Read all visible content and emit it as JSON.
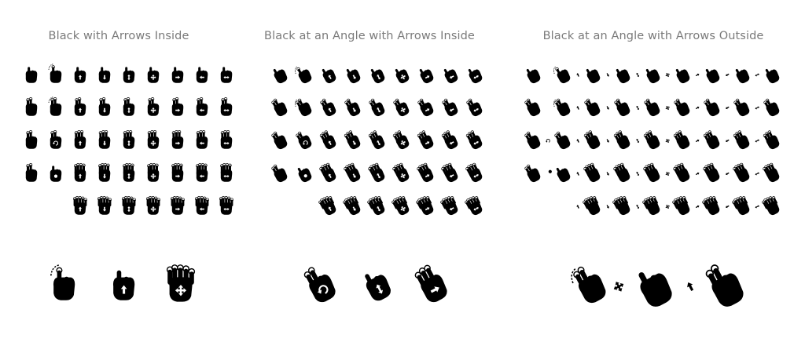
{
  "colors": {
    "background": "#ffffff",
    "title_text": "#7a7a7a",
    "icon_fill": "#000000",
    "arrow_fill": "#ffffff"
  },
  "panels": [
    {
      "title": "Black with Arrows Inside",
      "style": "upright",
      "arrows": "inside",
      "grid_rows": [
        [
          "tap-1",
          "drag-1",
          "swipe-up-1",
          "swipe-down-1",
          "scroll-1",
          "move-1",
          "swipe-right-1",
          "swipe-left-1",
          "swipe-horizontal-1"
        ],
        [
          "tap-2",
          "drag-2",
          "swipe-up-2",
          "swipe-down-2",
          "scroll-2",
          "move-2",
          "swipe-right-2",
          "swipe-left-2",
          "swipe-horizontal-2"
        ],
        [
          "spread-2",
          "rotate-2",
          "swipe-up-3",
          "swipe-down-3",
          "scroll-3",
          "move-3",
          "swipe-right-3",
          "swipe-left-3",
          "swipe-horizontal-3"
        ],
        [
          "pinch-2",
          "touch-rotate",
          "swipe-up-4",
          "swipe-down-4",
          "scroll-4",
          "move-4",
          "swipe-right-4",
          "swipe-left-4",
          "swipe-horizontal-4"
        ],
        [
          "swipe-up-5",
          "swipe-down-5",
          "scroll-5",
          "move-5",
          "swipe-right-5",
          "swipe-left-5",
          "swipe-horizontal-5"
        ]
      ],
      "featured": [
        "double-tap-icon",
        "swipe-up-icon",
        "move-5-fingers-icon"
      ]
    },
    {
      "title": "Black at an Angle with Arrows Inside",
      "style": "angled",
      "arrows": "inside",
      "grid_rows": [
        [
          "tap-1",
          "drag-1",
          "swipe-up-1",
          "swipe-down-1",
          "scroll-1",
          "move-1",
          "swipe-right-1",
          "swipe-left-1",
          "swipe-horizontal-1"
        ],
        [
          "tap-2",
          "drag-2",
          "swipe-up-2",
          "swipe-down-2",
          "scroll-2",
          "move-2",
          "swipe-right-2",
          "swipe-left-2",
          "swipe-horizontal-2"
        ],
        [
          "spread-2",
          "rotate-2",
          "swipe-up-3",
          "swipe-down-3",
          "scroll-3",
          "move-3",
          "swipe-right-3",
          "swipe-left-3",
          "swipe-horizontal-3"
        ],
        [
          "pinch-2",
          "touch-rotate",
          "swipe-up-4",
          "swipe-down-4",
          "scroll-4",
          "move-4",
          "swipe-right-4",
          "swipe-left-4",
          "swipe-horizontal-4"
        ],
        [
          "swipe-up-5",
          "swipe-down-5",
          "scroll-5",
          "move-5",
          "swipe-right-5",
          "swipe-left-5",
          "swipe-horizontal-5"
        ]
      ],
      "featured": [
        "rotate-icon",
        "scroll-vertical-icon",
        "swipe-right-icon"
      ]
    },
    {
      "title": "Black at an Angle with Arrows Outside",
      "style": "angled",
      "arrows": "outside",
      "grid_rows": [
        [
          "tap-1",
          "drag-1",
          "swipe-up-1",
          "swipe-down-1",
          "scroll-1",
          "move-1",
          "swipe-right-1",
          "swipe-left-1",
          "swipe-horizontal-1"
        ],
        [
          "tap-2",
          "drag-2",
          "swipe-up-2",
          "swipe-down-2",
          "scroll-2",
          "move-2",
          "swipe-right-2",
          "swipe-left-2",
          "swipe-horizontal-2"
        ],
        [
          "spread-2",
          "rotate-2",
          "swipe-up-3",
          "swipe-down-3",
          "scroll-3",
          "move-3",
          "swipe-right-3",
          "swipe-left-3",
          "swipe-horizontal-3"
        ],
        [
          "pinch-2",
          "touch-rotate",
          "swipe-up-4",
          "swipe-down-4",
          "scroll-4",
          "move-4",
          "swipe-right-4",
          "swipe-left-4",
          "swipe-horizontal-4"
        ],
        [
          "swipe-up-5",
          "swipe-down-5",
          "scroll-5",
          "move-5",
          "swipe-right-5",
          "swipe-left-5",
          "swipe-horizontal-5"
        ]
      ],
      "featured": [
        "double-tap-2-icon",
        "move-icon",
        "swipe-up-2-icon"
      ]
    }
  ]
}
